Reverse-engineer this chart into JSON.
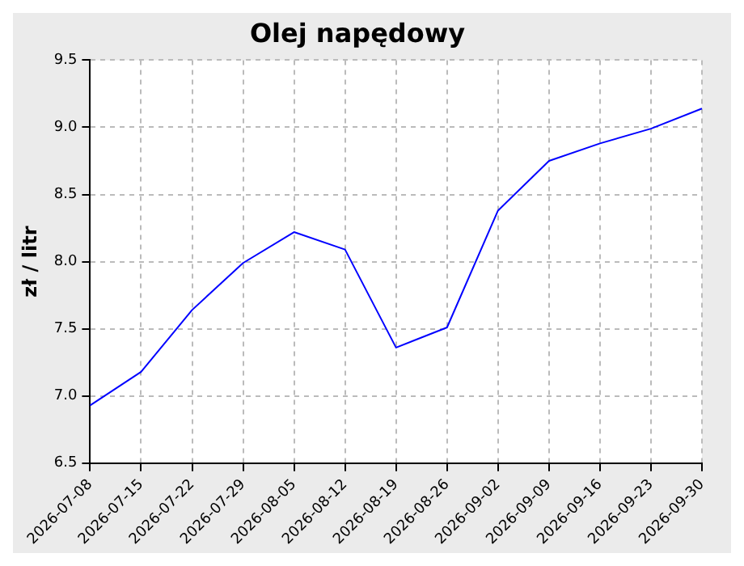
{
  "chart_data": {
    "type": "line",
    "title": "Olej napędowy",
    "ylabel": "zł / litr",
    "categories": [
      "2026-07-08",
      "2026-07-15",
      "2026-07-22",
      "2026-07-29",
      "2026-08-05",
      "2026-08-12",
      "2026-08-19",
      "2026-08-26",
      "2026-09-02",
      "2026-09-09",
      "2026-09-16",
      "2026-09-23",
      "2026-09-30"
    ],
    "series": [
      {
        "color": "#0000ff",
        "values": [
          6.93,
          7.18,
          7.64,
          7.99,
          8.22,
          8.09,
          7.36,
          7.51,
          8.38,
          8.75,
          8.88,
          8.99,
          9.14
        ]
      }
    ],
    "ylim": [
      6.5,
      9.5
    ],
    "yticks": [
      6.5,
      {
        "value": 7,
        "label": "7.0"
      },
      7.5,
      {
        "value": 8,
        "label": "8.0"
      },
      8.5,
      {
        "value": 9,
        "label": "9.0"
      },
      9.5
    ],
    "grid": true,
    "legend": false,
    "marker": "none",
    "line_style": "solid"
  }
}
